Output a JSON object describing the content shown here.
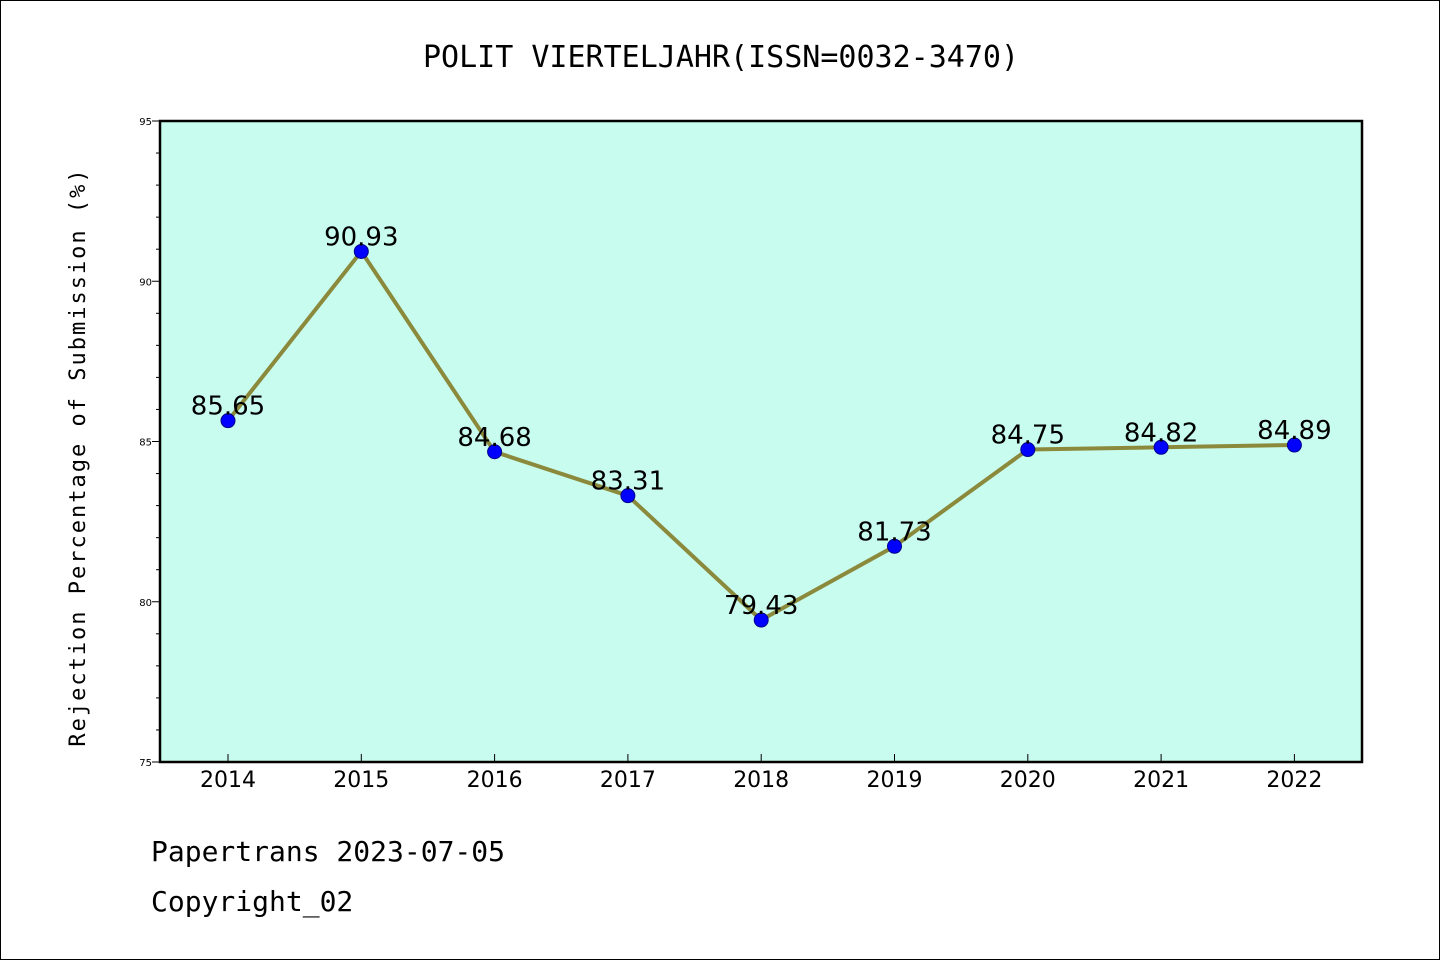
{
  "chart_data": {
    "type": "line",
    "title": "POLIT VIERTELJAHR(ISSN=0032-3470)",
    "xlabel": "",
    "ylabel": "Rejection Percentage of Submission (%)",
    "categories": [
      "2014",
      "2015",
      "2016",
      "2017",
      "2018",
      "2019",
      "2020",
      "2021",
      "2022"
    ],
    "series": [
      {
        "values": [
          85.65,
          90.93,
          84.68,
          83.31,
          79.43,
          81.73,
          84.75,
          84.82,
          84.89
        ]
      }
    ],
    "data_labels": [
      "85.65",
      "90.93",
      "84.68",
      "83.31",
      "79.43",
      "81.73",
      "84.75",
      "84.82",
      "84.89"
    ],
    "ylim": [
      75,
      95
    ],
    "yticks": [
      75,
      80,
      85,
      90,
      95
    ],
    "grid": false,
    "legend": "none",
    "colors": {
      "plot_background": "#c8fcee",
      "line": "#8b8a3c",
      "marker": "#0000ff"
    }
  },
  "footer": {
    "line1": "Papertrans 2023-07-05",
    "line2": "Copyright_02"
  }
}
